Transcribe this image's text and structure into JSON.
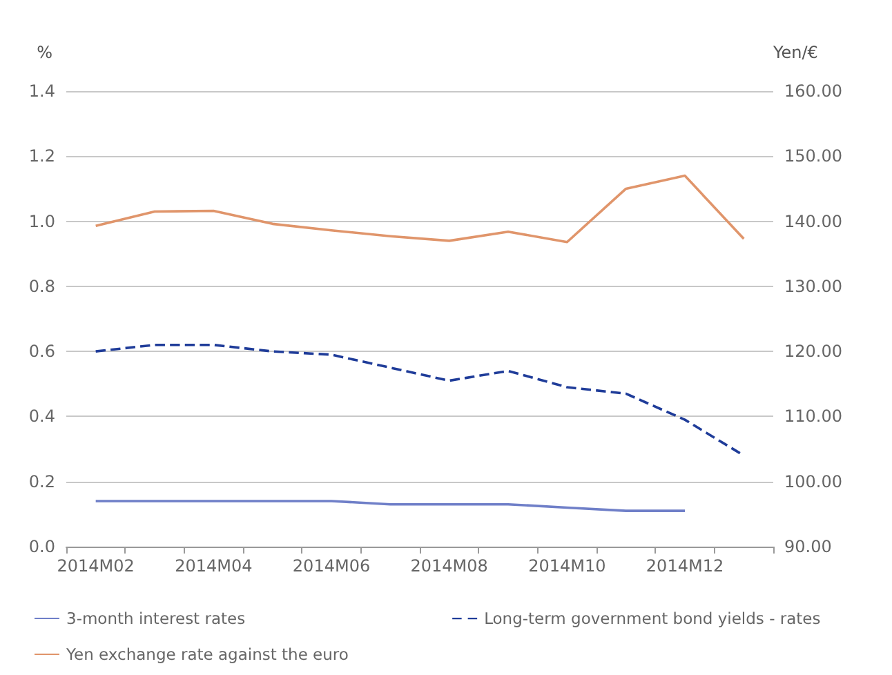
{
  "chart_data": {
    "type": "line",
    "ylabel": "%",
    "y2label": "Yen/€",
    "categories": [
      "2014M02",
      null,
      "2014M04",
      null,
      "2014M06",
      null,
      "2014M08",
      null,
      "2014M10",
      null,
      "2014M12",
      null
    ],
    "series": [
      {
        "name": "3-month interest rates",
        "color": "#6f7fc8",
        "line_style": "solid",
        "values": [
          0.14,
          0.14,
          0.14,
          0.14,
          0.14,
          0.13,
          0.13,
          0.13,
          0.12,
          0.11,
          0.11,
          null
        ]
      },
      {
        "name": "Long-term government bond yields - rates",
        "color": "#1f3c99",
        "line_style": "dashed",
        "values": [
          0.6,
          0.62,
          0.62,
          0.6,
          0.59,
          0.55,
          0.51,
          0.54,
          0.49,
          0.47,
          0.39,
          0.28
        ]
      },
      {
        "name": "Yen exchange rate against the euro",
        "color": "#e0956b",
        "line_style": "solid",
        "axis": "y2",
        "values": [
          139.3,
          141.5,
          141.6,
          139.6,
          138.6,
          137.7,
          137.0,
          138.4,
          136.8,
          145.0,
          147.0,
          137.3
        ]
      }
    ],
    "ylim": [
      0,
      1.4
    ],
    "yticks": [
      {
        "value": 0,
        "label": "0.0"
      },
      0.2,
      0.4,
      0.6,
      0.8,
      {
        "value": 1,
        "label": "1.0"
      },
      1.2,
      1.4
    ],
    "y2lim": [
      90,
      160
    ],
    "y2ticks": [
      {
        "value": 90,
        "label": "90.00"
      },
      {
        "value": 100,
        "label": "100.00"
      },
      {
        "value": 110,
        "label": "110.00"
      },
      {
        "value": 120,
        "label": "120.00"
      },
      {
        "value": 130,
        "label": "130.00"
      },
      {
        "value": 140,
        "label": "140.00"
      },
      {
        "value": 150,
        "label": "150.00"
      },
      {
        "value": 160,
        "label": "160.00"
      }
    ],
    "grid": "y",
    "legend": "bottom",
    "marker": "none"
  }
}
